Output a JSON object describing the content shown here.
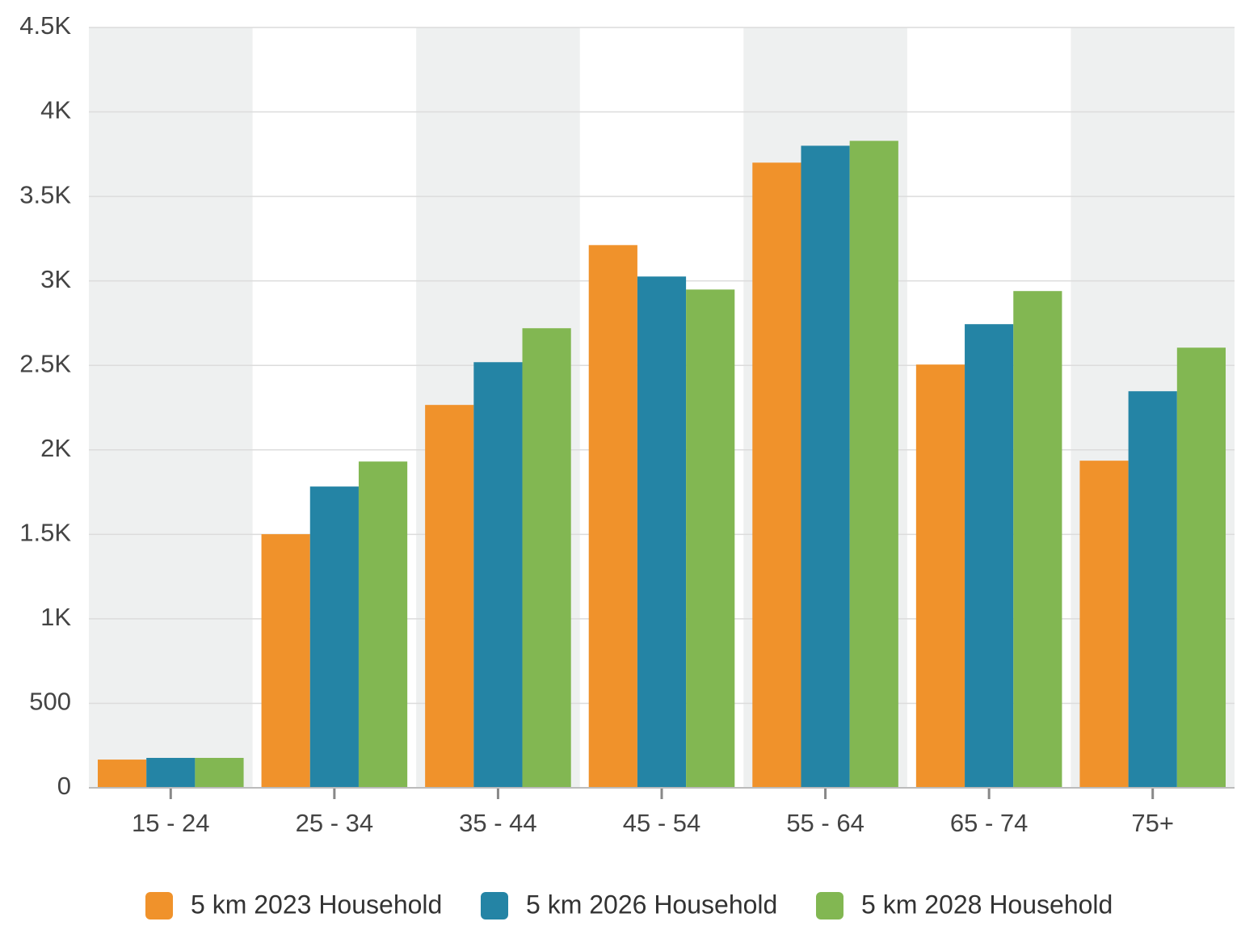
{
  "chart_data": {
    "type": "bar",
    "categories": [
      "15 - 24",
      "25 - 34",
      "35 - 44",
      "45 - 54",
      "55 - 64",
      "65 - 74",
      "75+"
    ],
    "series": [
      {
        "name": "5 km 2023 Household",
        "color": "#f0922b",
        "values": [
          167,
          1501,
          2266,
          3212,
          3700,
          2505,
          1936
        ]
      },
      {
        "name": "5 km 2026 Household",
        "color": "#2484a5",
        "values": [
          177,
          1783,
          2519,
          3026,
          3800,
          2744,
          2347
        ]
      },
      {
        "name": "5 km 2028 Household",
        "color": "#82b752",
        "values": [
          177,
          1931,
          2720,
          2949,
          3829,
          2940,
          2605
        ]
      }
    ],
    "ylim": [
      0,
      4500
    ],
    "yticks": [
      0,
      500,
      {
        "value": 1000,
        "label": "1K"
      },
      {
        "value": 1500,
        "label": "1.5K"
      },
      {
        "value": 2000,
        "label": "2K"
      },
      {
        "value": 2500,
        "label": "2.5K"
      },
      {
        "value": 3000,
        "label": "3K"
      },
      {
        "value": 3500,
        "label": "3.5K"
      },
      {
        "value": 4000,
        "label": "4K"
      },
      {
        "value": 4500,
        "label": "4.5K"
      }
    ],
    "grid": true,
    "legend": "bottom"
  }
}
